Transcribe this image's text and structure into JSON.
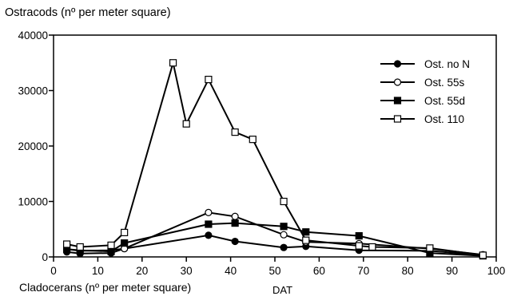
{
  "chart_data": {
    "type": "line",
    "title": "Ostracods (nº per meter square)",
    "xlabel": "DAT",
    "ylabel": "",
    "bottom_text": "Cladocerans (nº per meter square)",
    "xlim": [
      0,
      100
    ],
    "ylim": [
      0,
      40000
    ],
    "x_ticks": [
      0,
      10,
      20,
      30,
      40,
      50,
      60,
      70,
      80,
      90,
      100
    ],
    "y_ticks": [
      0,
      10000,
      20000,
      30000,
      40000
    ],
    "grid": false,
    "legend_position": "top-right",
    "series": [
      {
        "name": "Ost. no N",
        "marker": "filled-circle",
        "x": [
          3,
          6,
          13,
          16,
          35,
          41,
          52,
          57,
          69,
          85,
          97
        ],
        "y": [
          900,
          600,
          700,
          1500,
          3900,
          2800,
          1700,
          1900,
          1200,
          1100,
          300
        ]
      },
      {
        "name": "Ost. 55s",
        "marker": "open-circle",
        "x": [
          3,
          6,
          13,
          16,
          35,
          41,
          52,
          57,
          69,
          85,
          97
        ],
        "y": [
          1400,
          1100,
          1200,
          1500,
          8000,
          7300,
          4000,
          2700,
          2400,
          1500,
          400
        ]
      },
      {
        "name": "Ost. 55d",
        "marker": "filled-square",
        "x": [
          3,
          6,
          13,
          16,
          35,
          41,
          52,
          57,
          69,
          85,
          97
        ],
        "y": [
          1400,
          1200,
          1000,
          2500,
          5900,
          6100,
          5500,
          4500,
          3800,
          700,
          200
        ]
      },
      {
        "name": "Ost. 110",
        "marker": "open-square",
        "x": [
          3,
          6,
          13,
          16,
          27,
          30,
          35,
          41,
          45,
          52,
          57,
          69,
          72,
          85,
          97
        ],
        "y": [
          2300,
          1800,
          2100,
          4400,
          35000,
          24000,
          32000,
          22500,
          21200,
          10000,
          3000,
          2000,
          1800,
          1600,
          300
        ]
      }
    ]
  }
}
